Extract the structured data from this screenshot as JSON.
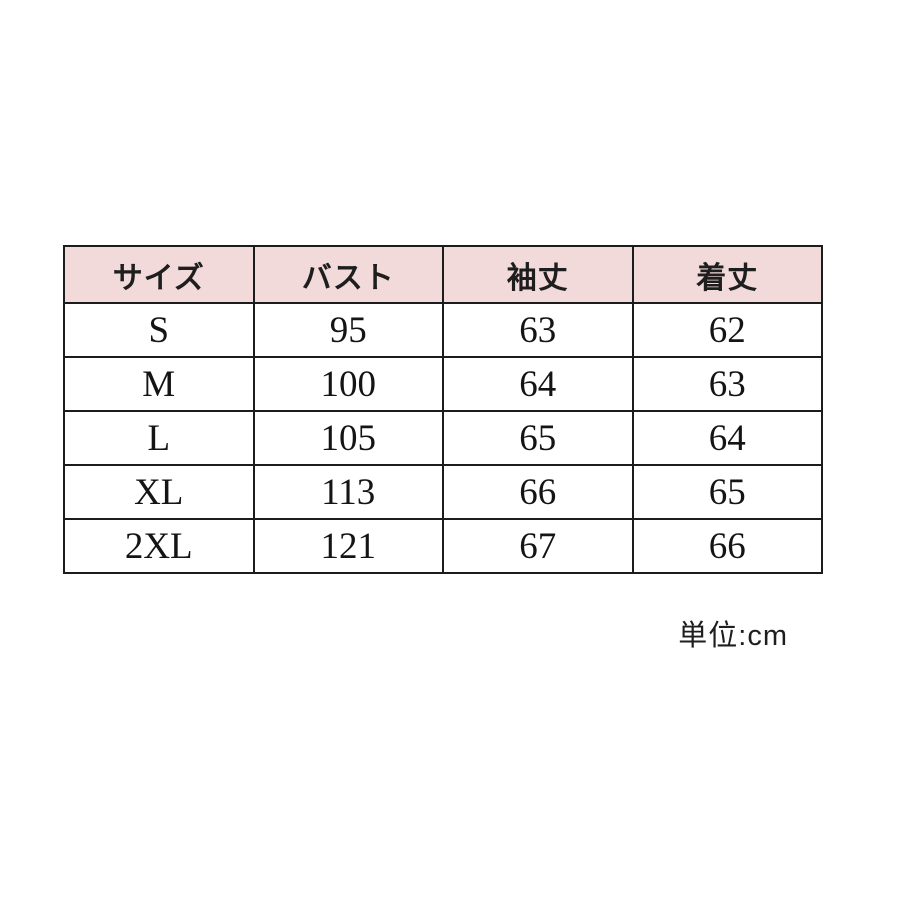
{
  "chart_data": {
    "type": "table",
    "title": "",
    "columns": [
      "サイズ",
      "バスト",
      "袖丈",
      "着丈"
    ],
    "rows": [
      [
        "S",
        "95",
        "63",
        "62"
      ],
      [
        "M",
        "100",
        "64",
        "63"
      ],
      [
        "L",
        "105",
        "65",
        "64"
      ],
      [
        "XL",
        "113",
        "66",
        "65"
      ],
      [
        "2XL",
        "121",
        "67",
        "66"
      ]
    ],
    "unit_note": "単位:cm",
    "layout": {
      "header_bg": "#f2dada",
      "cell_bg": "#ffffff",
      "border_color": "#1c1c1c",
      "page_bg": "#ffffff"
    }
  }
}
